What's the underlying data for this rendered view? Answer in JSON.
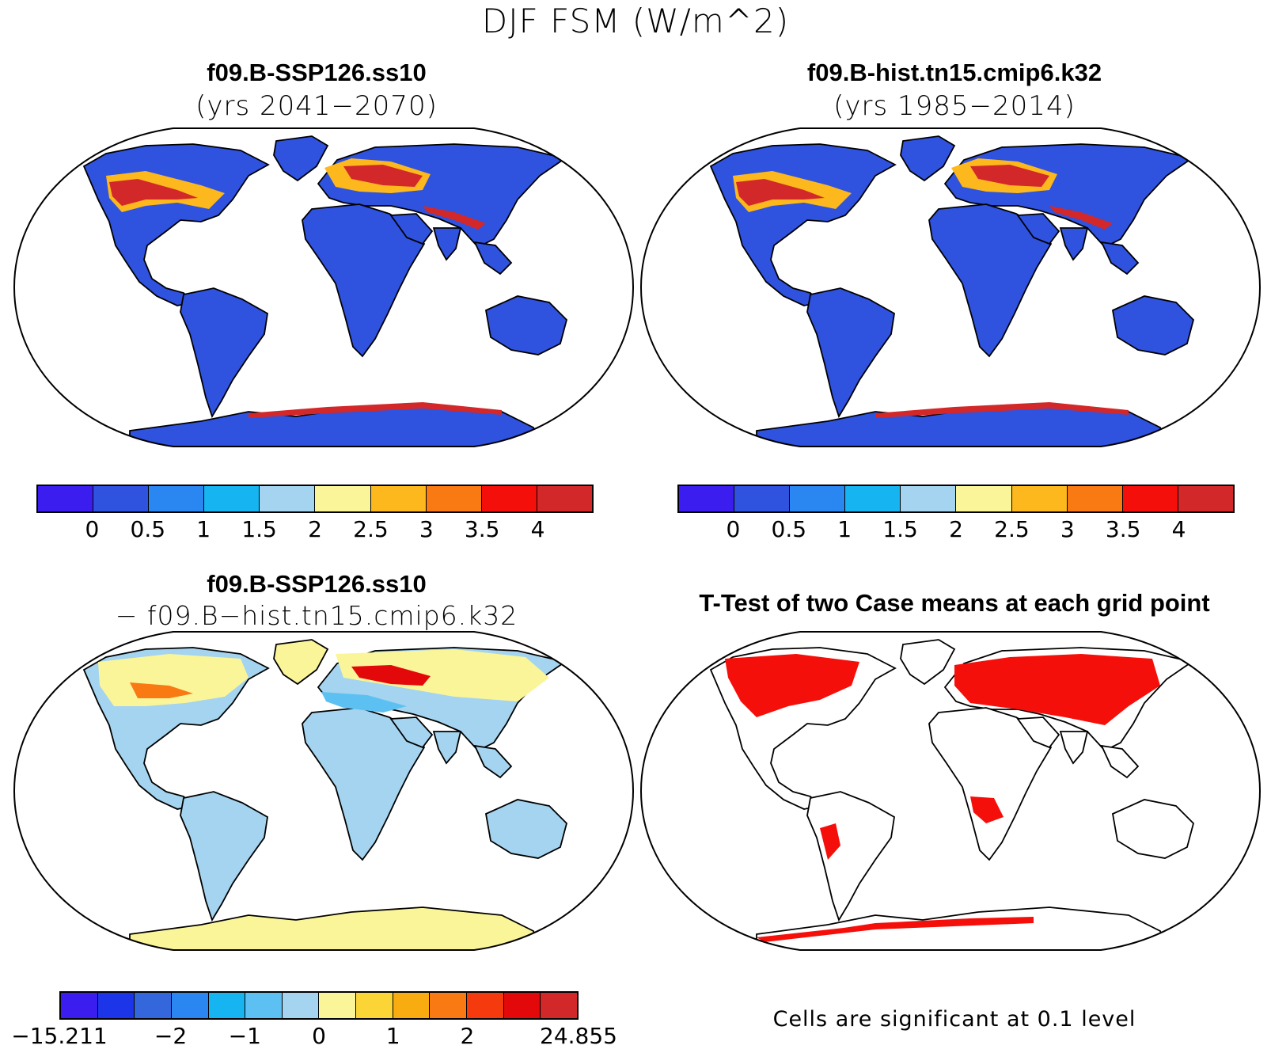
{
  "title": "DJF FSM (W/m^2)",
  "panels": {
    "top_left": {
      "case": "f09.B-SSP126.ss10",
      "years": "(yrs 2041−2070)"
    },
    "top_right": {
      "case": "f09.B-hist.tn15.cmip6.k32",
      "years": "(yrs 1985−2014)"
    },
    "bottom_left": {
      "case": "f09.B-SSP126.ss10",
      "minus_case": "− f09.B−hist.tn15.cmip6.k32"
    },
    "bottom_right": {
      "title": "T-Test of two Case means at each grid point",
      "note": "Cells are significant at 0.1 level"
    }
  },
  "colorbars": {
    "abs": {
      "colors": [
        "#3b1df0",
        "#2f52df",
        "#2a86f0",
        "#16b4f0",
        "#a4d4ef",
        "#fbf59a",
        "#fcb81c",
        "#f97a12",
        "#f50f0a",
        "#d2282a"
      ],
      "labels": [
        "0",
        "0.5",
        "1",
        "1.5",
        "2",
        "2.5",
        "3",
        "3.5",
        "4"
      ]
    },
    "diff": {
      "colors": [
        "#3b1df0",
        "#1c35e8",
        "#3567dc",
        "#2a86f0",
        "#16b4f0",
        "#5cc1f2",
        "#a4d4ef",
        "#fbf59a",
        "#fbd435",
        "#f9ac10",
        "#f97a12",
        "#f53a0e",
        "#e3080a",
        "#d2282a"
      ],
      "labels": [
        "−15.211",
        "−2",
        "−1",
        "0",
        "1",
        "2",
        "24.855"
      ]
    }
  },
  "colors": {
    "land_abs": "#2f52df",
    "snow_high": "#d2282a",
    "snow_mid": "#fcb81c",
    "diff_land": "#a4d4ef",
    "diff_pos": "#fbf59a",
    "sig": "#f50f0a"
  }
}
